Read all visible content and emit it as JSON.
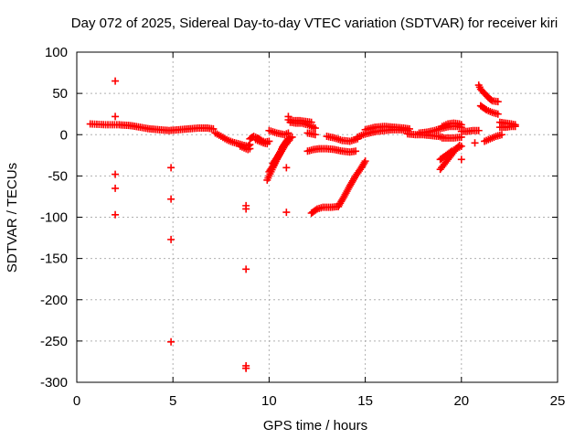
{
  "chart_data": {
    "type": "scatter",
    "title": "Day 072 of 2025, Sidereal Day-to-day VTEC variation (SDTVAR) for receiver kiri",
    "xlabel": "GPS time / hours",
    "ylabel": "SDTVAR / TECUs",
    "xlim": [
      0,
      25
    ],
    "ylim": [
      -300,
      100
    ],
    "xticks": [
      0,
      5,
      10,
      15,
      20,
      25
    ],
    "yticks": [
      100,
      50,
      0,
      -50,
      -100,
      -150,
      -200,
      -250,
      -300
    ],
    "grid": true,
    "marker": "plus",
    "color": "#ff0000",
    "segments": [
      {
        "x": [
          0.7,
          1.5,
          2.2,
          2.8,
          3.3,
          3.8,
          4.3,
          4.8,
          5.3,
          5.8,
          6.3,
          6.8,
          7.1
        ],
        "y": [
          13,
          12,
          12,
          11,
          9,
          7,
          6,
          5,
          6,
          7,
          8,
          8,
          7
        ]
      },
      {
        "x": [
          7.2,
          7.5,
          7.8,
          8.1,
          8.4,
          8.7,
          8.9,
          9.0
        ],
        "y": [
          2,
          -2,
          -6,
          -9,
          -11,
          -13,
          -14,
          -12
        ]
      },
      {
        "x": [
          8.5,
          8.7,
          8.9,
          9.0
        ],
        "y": [
          -14,
          -16,
          -18,
          -17
        ]
      },
      {
        "x": [
          9.0,
          9.2,
          9.4,
          9.6,
          9.8,
          10.0
        ],
        "y": [
          -5,
          -2,
          -4,
          -7,
          -9,
          -8
        ]
      },
      {
        "x": [
          9.3,
          9.5,
          9.7,
          9.9
        ],
        "y": [
          -6,
          -8,
          -10,
          -11
        ]
      },
      {
        "x": [
          9.9,
          10.1,
          10.3,
          10.5,
          10.7,
          10.9,
          11.0
        ],
        "y": [
          -55,
          -45,
          -35,
          -25,
          -15,
          -8,
          -5
        ]
      },
      {
        "x": [
          10.0,
          10.2,
          10.4,
          10.6,
          10.8,
          11.0,
          11.1
        ],
        "y": [
          -45,
          -38,
          -30,
          -22,
          -14,
          -8,
          -3
        ]
      },
      {
        "x": [
          10.2,
          10.4,
          10.6,
          10.8,
          11.0,
          11.2
        ],
        "y": [
          -35,
          -28,
          -20,
          -12,
          -5,
          -3
        ]
      },
      {
        "x": [
          10.0,
          10.4,
          10.8,
          11.0
        ],
        "y": [
          5,
          2,
          0,
          2
        ]
      },
      {
        "x": [
          11.0,
          11.3,
          11.6,
          11.9,
          12.2
        ],
        "y": [
          18,
          17,
          17,
          16,
          15
        ]
      },
      {
        "x": [
          11.1,
          11.4,
          11.7,
          12.0,
          12.2,
          12.4
        ],
        "y": [
          15,
          14,
          14,
          12,
          10,
          8
        ]
      },
      {
        "x": [
          12.0,
          12.2,
          12.4
        ],
        "y": [
          2,
          1,
          0
        ]
      },
      {
        "x": [
          12.0,
          12.3,
          12.6,
          13.0,
          13.4,
          13.8,
          14.2,
          14.5
        ],
        "y": [
          -20,
          -18,
          -17,
          -17,
          -18,
          -20,
          -21,
          -20
        ]
      },
      {
        "x": [
          12.2,
          12.5,
          12.8,
          13.2,
          13.6
        ],
        "y": [
          -95,
          -90,
          -88,
          -88,
          -87
        ]
      },
      {
        "x": [
          13.6,
          13.9,
          14.2,
          14.5,
          14.8,
          15.0
        ],
        "y": [
          -87,
          -75,
          -62,
          -50,
          -40,
          -32
        ]
      },
      {
        "x": [
          13.0,
          13.4,
          13.8,
          14.2,
          14.6
        ],
        "y": [
          -2,
          -4,
          -7,
          -8,
          -5
        ]
      },
      {
        "x": [
          14.6,
          14.9,
          15.2,
          15.6,
          16.0,
          16.4,
          16.8,
          17.2
        ],
        "y": [
          -3,
          0,
          2,
          4,
          5,
          6,
          6,
          5
        ]
      },
      {
        "x": [
          15.0,
          15.5,
          16.0,
          16.5,
          17.0,
          17.3
        ],
        "y": [
          6,
          9,
          10,
          9,
          8,
          7
        ]
      },
      {
        "x": [
          17.2,
          17.6,
          18.0,
          18.4,
          18.8,
          19.0
        ],
        "y": [
          1,
          0,
          0,
          -1,
          -2,
          -3
        ]
      },
      {
        "x": [
          17.8,
          18.2,
          18.6,
          19.0,
          19.4,
          19.8,
          20.0
        ],
        "y": [
          2,
          3,
          5,
          8,
          10,
          10,
          9
        ]
      },
      {
        "x": [
          19.0,
          19.3,
          19.6,
          19.9,
          20.0
        ],
        "y": [
          10,
          13,
          14,
          13,
          12
        ]
      },
      {
        "x": [
          19.0,
          19.3,
          19.6,
          20.0
        ],
        "y": [
          -4,
          -4,
          -4,
          -3
        ]
      },
      {
        "x": [
          18.9,
          19.1,
          19.3,
          19.5,
          19.7,
          19.9
        ],
        "y": [
          -42,
          -36,
          -30,
          -24,
          -18,
          -13
        ]
      },
      {
        "x": [
          18.9,
          19.2,
          19.5,
          19.8,
          20.0
        ],
        "y": [
          -30,
          -25,
          -20,
          -16,
          -14
        ]
      },
      {
        "x": [
          20.0,
          20.3,
          20.6,
          20.9
        ],
        "y": [
          4,
          4,
          5,
          5
        ]
      },
      {
        "x": [
          20.9,
          21.0,
          21.2,
          21.4,
          21.6,
          21.9
        ],
        "y": [
          60,
          55,
          50,
          45,
          41,
          40
        ]
      },
      {
        "x": [
          21.0,
          21.3,
          21.6,
          21.9
        ],
        "y": [
          35,
          30,
          27,
          25
        ]
      },
      {
        "x": [
          21.2,
          21.5,
          21.8,
          22.1
        ],
        "y": [
          -8,
          -5,
          -2,
          0
        ]
      },
      {
        "x": [
          22.0,
          22.3,
          22.6,
          22.8
        ],
        "y": [
          15,
          14,
          13,
          12
        ]
      },
      {
        "x": [
          22.0,
          22.3,
          22.6,
          22.8
        ],
        "y": [
          9,
          9,
          10,
          10
        ]
      }
    ],
    "points": {
      "x": [
        2.0,
        2.0,
        2.0,
        2.0,
        2.0,
        4.9,
        4.9,
        4.9,
        4.9,
        8.8,
        8.8,
        8.8,
        8.8,
        8.8,
        8.8,
        10.9,
        10.9,
        20.0,
        20.7,
        11.0
      ],
      "y": [
        65,
        22,
        -48,
        -65,
        -97,
        -40,
        -78,
        -127,
        -251,
        -86,
        -90,
        -163,
        -280,
        -283,
        -283,
        -40,
        -94,
        -30,
        -10,
        22
      ]
    }
  }
}
